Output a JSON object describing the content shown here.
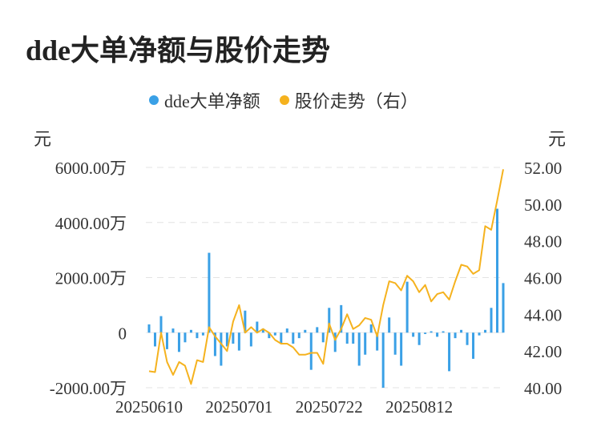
{
  "chart_data": {
    "type": "bar",
    "title": "dde大单净额与股价走势",
    "left_unit": "元",
    "right_unit": "元",
    "legend": "top",
    "grid": true,
    "colors": {
      "bar": "#3AA0E6",
      "line": "#F5B21E"
    },
    "x_tick_labels": [
      "20250610",
      "20250701",
      "20250722",
      "20250812"
    ],
    "x_tick_indices": [
      0,
      15,
      30,
      45
    ],
    "y_left": {
      "ticks": [
        -2000,
        0,
        2000,
        4000,
        6000
      ],
      "tick_labels": [
        "-2000.00万",
        "0",
        "2000.00万",
        "4000.00万",
        "6000.00万"
      ],
      "ylim": [
        -2000,
        6000
      ]
    },
    "y_right": {
      "ticks": [
        40,
        42,
        44,
        46,
        48,
        50,
        52
      ],
      "tick_labels": [
        "40.00",
        "42.00",
        "44.00",
        "46.00",
        "48.00",
        "50.00",
        "52.00"
      ],
      "ylim": [
        40,
        52
      ]
    },
    "series": [
      {
        "name": "dde大单净额",
        "type": "bar",
        "axis": "left",
        "values": [
          300,
          -500,
          600,
          -600,
          150,
          -700,
          -350,
          100,
          -200,
          -100,
          2900,
          -850,
          -1200,
          -500,
          -400,
          -650,
          800,
          -500,
          400,
          150,
          -200,
          -100,
          -400,
          150,
          -400,
          -200,
          100,
          -1350,
          200,
          -350,
          900,
          -700,
          1000,
          -400,
          -400,
          -1200,
          -800,
          300,
          -650,
          -2000,
          550,
          -800,
          -1200,
          1850,
          -150,
          -450,
          -50,
          50,
          -150,
          50,
          -1400,
          -200,
          100,
          -450,
          -950,
          -100,
          100,
          900,
          4500,
          1800
        ]
      },
      {
        "name": "股价走势（右）",
        "type": "line",
        "axis": "right",
        "values": [
          40.9,
          40.85,
          43.0,
          41.4,
          40.7,
          41.4,
          41.2,
          40.2,
          41.5,
          41.4,
          43.3,
          42.8,
          42.4,
          42.0,
          43.6,
          44.5,
          43.0,
          43.3,
          43.0,
          43.2,
          43.0,
          42.6,
          42.4,
          42.4,
          42.2,
          41.8,
          41.8,
          41.9,
          41.9,
          41.3,
          43.5,
          42.6,
          43.2,
          44.0,
          43.2,
          43.4,
          43.8,
          43.7,
          42.8,
          44.5,
          45.8,
          45.7,
          45.3,
          46.1,
          45.8,
          45.2,
          45.6,
          44.7,
          45.1,
          45.2,
          44.8,
          45.8,
          46.7,
          46.6,
          46.2,
          46.4,
          48.8,
          48.6,
          50.2,
          51.9
        ]
      }
    ]
  }
}
